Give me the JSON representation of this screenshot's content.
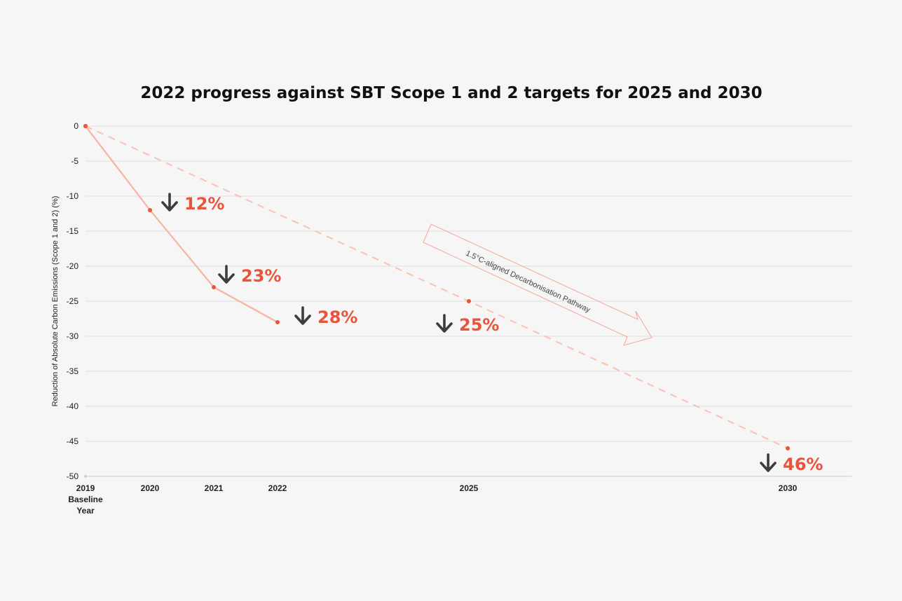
{
  "chart_data": {
    "type": "line",
    "title": "2022 progress against SBT Scope 1 and 2 targets for 2025 and 2030",
    "ylabel": "Reduction of Absolute Carbon Emissions (Scope 1 and 2) (%)",
    "ylim": [
      -50,
      0
    ],
    "yticks": [
      0,
      -5,
      -10,
      -15,
      -20,
      -25,
      -30,
      -35,
      -40,
      -45,
      -50
    ],
    "xticks": [
      {
        "year": 2019,
        "label": [
          "2019",
          "Baseline",
          "Year"
        ]
      },
      {
        "year": 2020,
        "label": [
          "2020"
        ]
      },
      {
        "year": 2021,
        "label": [
          "2021"
        ]
      },
      {
        "year": 2022,
        "label": [
          "2022"
        ]
      },
      {
        "year": 2025,
        "label": [
          "2025"
        ]
      },
      {
        "year": 2030,
        "label": [
          "2030"
        ]
      }
    ],
    "grid": true,
    "colors": {
      "actual": "#f7b3a3",
      "target": "#f9c2b2",
      "marker": "#e8553a",
      "arrow": "#3d3d3d",
      "label": "#e8553a"
    },
    "series": [
      {
        "style": "solid",
        "x": [
          2019,
          2020,
          2021,
          2022
        ],
        "y": [
          0,
          -12,
          -23,
          -28
        ]
      },
      {
        "style": "dashed",
        "x": [
          2019,
          2025,
          2030
        ],
        "y": [
          0,
          -25,
          -46
        ]
      }
    ],
    "annotations": [
      {
        "x": 2020,
        "y": -12,
        "text": "12%",
        "icon": "arrow-down-icon"
      },
      {
        "x": 2021,
        "y": -23,
        "text": "23%",
        "icon": "arrow-down-icon"
      },
      {
        "x": 2022,
        "y": -28,
        "text": "28%",
        "icon": "arrow-down-icon"
      },
      {
        "x": 2025,
        "y": -25,
        "text": "25%",
        "icon": "arrow-down-icon"
      },
      {
        "x": 2030,
        "y": -46,
        "text": "46%",
        "icon": "arrow-down-icon"
      }
    ],
    "pathway_label": "1.5°C-aligned Decarbonisation Pathway"
  }
}
